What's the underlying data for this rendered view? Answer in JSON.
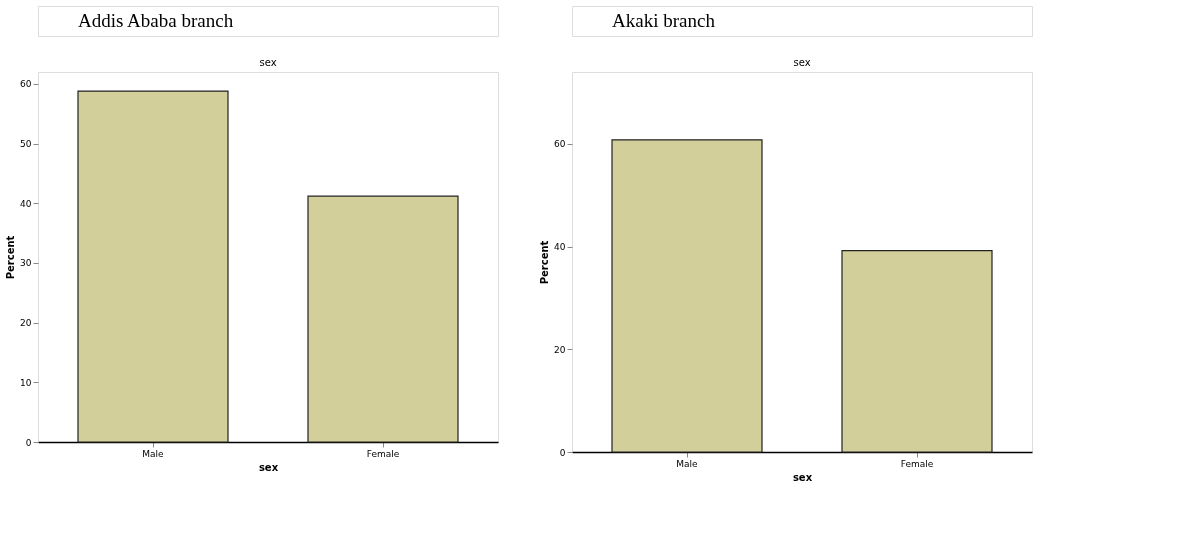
{
  "chart_data": [
    {
      "type": "bar",
      "title": "sex",
      "xlabel": "sex",
      "ylabel": "Percent",
      "annotations": [
        "Addis Ababa branch"
      ],
      "categories": [
        "Male",
        "Female"
      ],
      "values": [
        58.8,
        41.2
      ],
      "color": "#d3cf9b",
      "ylim": [
        0,
        62
      ],
      "yticks": [
        0,
        10,
        20,
        30,
        40,
        50,
        60
      ],
      "grid": false
    },
    {
      "type": "bar",
      "title": "sex",
      "xlabel": "sex",
      "ylabel": "Percent",
      "annotations": [
        "Akaki branch"
      ],
      "categories": [
        "Male",
        "Female"
      ],
      "values": [
        60.8,
        39.2
      ],
      "color": "#d3cf9b",
      "ylim": [
        0,
        74
      ],
      "yticks": [
        0,
        20,
        40,
        60
      ],
      "grid": false
    }
  ]
}
